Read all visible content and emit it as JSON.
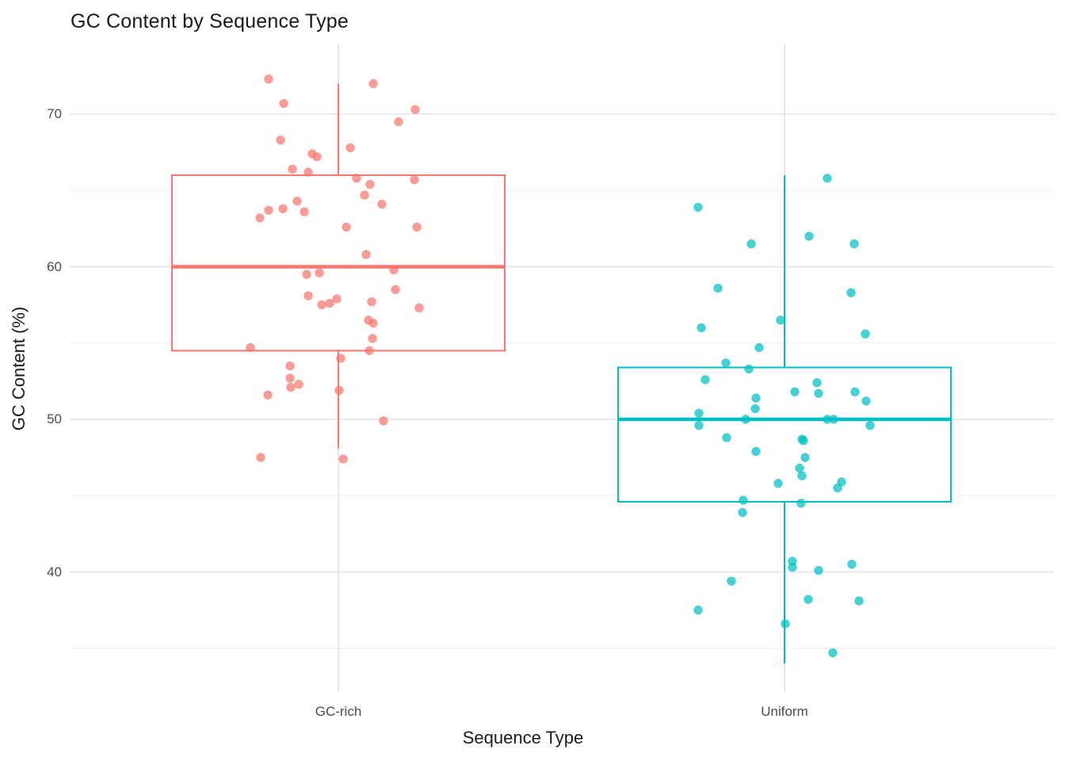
{
  "chart_data": {
    "type": "boxplot",
    "variant": "boxplot-with-jittered-points",
    "title": "GC Content by Sequence Type",
    "xlabel": "Sequence Type",
    "ylabel": "GC Content (%)",
    "categories": [
      "GC-rich",
      "Uniform"
    ],
    "yticks": [
      40,
      50,
      60,
      70
    ],
    "yticks_minor": [
      35,
      45,
      55,
      65
    ],
    "ylim": [
      32.2,
      74.6
    ],
    "grid": "horizontal major+minor, vertical major at categories, light gray on white, no axis lines",
    "legend": "none",
    "series": [
      {
        "name": "GC-rich",
        "color": "#F8766D",
        "box": {
          "q1": 54.5,
          "median": 60.0,
          "q3": 66.0,
          "whisker_low": 48.1,
          "whisker_high": 72.0
        },
        "points": [
          [
            -88,
            72.3
          ],
          [
            44,
            72.0
          ],
          [
            -69,
            70.7
          ],
          [
            97,
            70.3
          ],
          [
            76,
            69.5
          ],
          [
            -73,
            68.3
          ],
          [
            -33,
            67.4
          ],
          [
            -27,
            67.2
          ],
          [
            15,
            67.8
          ],
          [
            -58,
            66.4
          ],
          [
            -38,
            66.2
          ],
          [
            23,
            65.8
          ],
          [
            40,
            65.4
          ],
          [
            96,
            65.7
          ],
          [
            33,
            64.7
          ],
          [
            55,
            64.1
          ],
          [
            -52,
            64.3
          ],
          [
            -70,
            63.8
          ],
          [
            -88,
            63.7
          ],
          [
            -99,
            63.2
          ],
          [
            -43,
            63.6
          ],
          [
            10,
            62.6
          ],
          [
            99,
            62.6
          ],
          [
            35,
            60.8
          ],
          [
            70,
            59.8
          ],
          [
            -40,
            59.5
          ],
          [
            -24,
            59.6
          ],
          [
            -38,
            58.1
          ],
          [
            -2,
            57.9
          ],
          [
            -21,
            57.5
          ],
          [
            -11,
            57.6
          ],
          [
            72,
            58.5
          ],
          [
            42,
            57.7
          ],
          [
            38,
            56.5
          ],
          [
            44,
            56.3
          ],
          [
            102,
            57.3
          ],
          [
            43,
            55.3
          ],
          [
            -111,
            54.7
          ],
          [
            39,
            54.5
          ],
          [
            3,
            54.0
          ],
          [
            -61,
            53.5
          ],
          [
            -61,
            52.7
          ],
          [
            -50,
            52.3
          ],
          [
            -60,
            52.1
          ],
          [
            -89,
            51.6
          ],
          [
            1,
            51.9
          ],
          [
            57,
            49.9
          ],
          [
            -98,
            47.5
          ],
          [
            6,
            47.4
          ]
        ]
      },
      {
        "name": "Uniform",
        "color": "#00BFC4",
        "box": {
          "q1": 44.6,
          "median": 50.0,
          "q3": 53.4,
          "whisker_low": 34.0,
          "whisker_high": 66.0
        },
        "points": [
          [
            54,
            65.8
          ],
          [
            -109,
            63.9
          ],
          [
            31,
            62.0
          ],
          [
            -42,
            61.5
          ],
          [
            88,
            61.5
          ],
          [
            -84,
            58.6
          ],
          [
            84,
            58.3
          ],
          [
            -5,
            56.5
          ],
          [
            -105,
            56.0
          ],
          [
            102,
            55.6
          ],
          [
            -32,
            54.7
          ],
          [
            -74,
            53.7
          ],
          [
            -45,
            53.3
          ],
          [
            -100,
            52.6
          ],
          [
            41,
            52.4
          ],
          [
            13,
            51.8
          ],
          [
            43,
            51.7
          ],
          [
            89,
            51.8
          ],
          [
            103,
            51.2
          ],
          [
            -36,
            51.4
          ],
          [
            -37,
            50.7
          ],
          [
            -108,
            50.4
          ],
          [
            -108,
            49.6
          ],
          [
            54,
            50.0
          ],
          [
            62,
            50.0
          ],
          [
            -49,
            50.0
          ],
          [
            108,
            49.6
          ],
          [
            -73,
            48.8
          ],
          [
            22,
            48.7
          ],
          [
            24,
            48.6
          ],
          [
            -36,
            47.9
          ],
          [
            26,
            47.5
          ],
          [
            19,
            46.8
          ],
          [
            22,
            46.3
          ],
          [
            -8,
            45.8
          ],
          [
            72,
            45.9
          ],
          [
            67,
            45.5
          ],
          [
            -52,
            44.7
          ],
          [
            21,
            44.5
          ],
          [
            -53,
            43.9
          ],
          [
            10,
            40.7
          ],
          [
            10,
            40.3
          ],
          [
            43,
            40.1
          ],
          [
            85,
            40.5
          ],
          [
            -67,
            39.4
          ],
          [
            30,
            38.2
          ],
          [
            94,
            38.1
          ],
          [
            -109,
            37.5
          ],
          [
            1,
            36.6
          ],
          [
            61,
            34.7
          ]
        ]
      }
    ],
    "style_colors": {
      "background": "#FFFFFF",
      "grid_major": "#E4E4E4",
      "grid_minor": "#F0F0F0",
      "tick_label": "#4D4D4D",
      "text": "#1A1A1A",
      "box_fill": "#FFFFFF"
    }
  }
}
